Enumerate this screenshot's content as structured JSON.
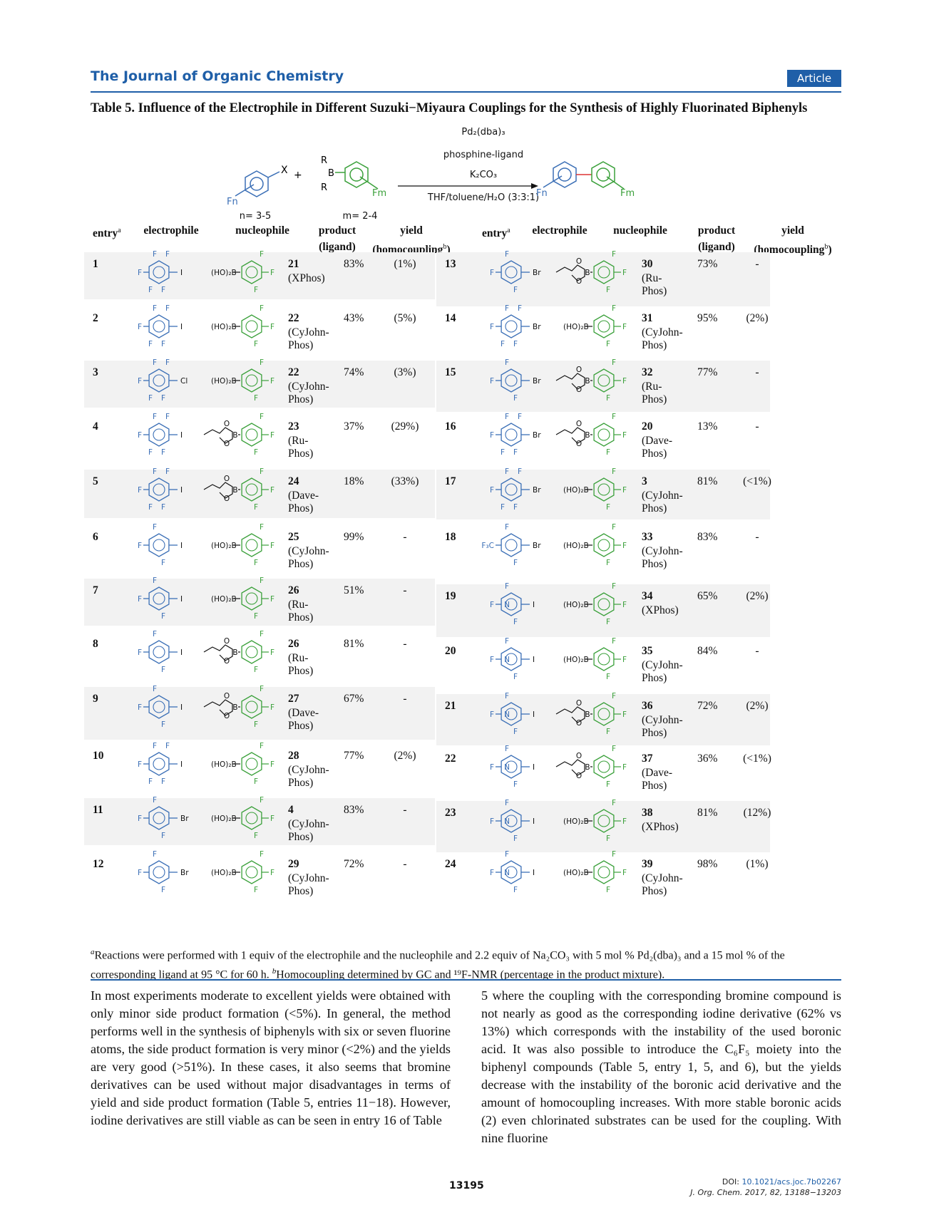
{
  "header": {
    "journal": "The Journal of Organic Chemistry",
    "badge": "Article"
  },
  "caption": "Table 5. Influence of the Electrophile in Different Suzuki−Miyaura Couplings for the Synthesis of Highly Fluorinated Biphenyls",
  "scheme": {
    "cond1": "Pd₂(dba)₃",
    "cond2": "phosphine-ligand",
    "cond3": "K₂CO₃",
    "cond4": "THF/toluene/H₂O (3:3:1)",
    "nlabel": "n= 3-5",
    "mlabel": "m= 2-4",
    "X": "X",
    "plus": "+",
    "B": "B",
    "R1": "R",
    "R2": "R",
    "Fn1": "Fn",
    "Fm1": "Fm",
    "Fn2": "Fn",
    "Fm2": "Fm"
  },
  "columns": {
    "entry": "entry",
    "entry_sup": "a",
    "electrophile": "electrophile",
    "nucleophile": "nucleophile",
    "product": "product",
    "ligand": "(ligand)",
    "yield": "yield",
    "homocoupling": "(homocoupling",
    "homo_sup": "b",
    "homo_close": ")"
  },
  "rows": [
    {
      "entry": "1",
      "e": "C6F5-I",
      "n": "boronic",
      "product": "21",
      "ligand": "(XPhos)",
      "yield": "83%",
      "homo": "(1%)"
    },
    {
      "entry": "2",
      "e": "C6F5-I",
      "n": "boronic",
      "product": "22",
      "ligand": "(CyJohn-\nPhos)",
      "yield": "43%",
      "homo": "(5%)"
    },
    {
      "entry": "3",
      "e": "C6F5-Cl",
      "n": "boronic",
      "product": "22",
      "ligand": "(CyJohn-\nPhos)",
      "yield": "74%",
      "homo": "(3%)"
    },
    {
      "entry": "4",
      "e": "C6F5-I",
      "n": "ester",
      "product": "23",
      "ligand": "(Ru-\nPhos)",
      "yield": "37%",
      "homo": "(29%)"
    },
    {
      "entry": "5",
      "e": "C6F5-I",
      "n": "ester",
      "product": "24",
      "ligand": "(Dave-\nPhos)",
      "yield": "18%",
      "homo": "(33%)"
    },
    {
      "entry": "6",
      "e": "ArF3-I",
      "n": "boronic",
      "product": "25",
      "ligand": "(CyJohn-\nPhos)",
      "yield": "99%",
      "homo": "-"
    },
    {
      "entry": "7",
      "e": "ArF3-I",
      "n": "boronic",
      "product": "26",
      "ligand": "(Ru-\nPhos)",
      "yield": "51%",
      "homo": "-"
    },
    {
      "entry": "8",
      "e": "ArF3-I",
      "n": "ester",
      "product": "26",
      "ligand": "(Ru-\nPhos)",
      "yield": "81%",
      "homo": "-"
    },
    {
      "entry": "9",
      "e": "ArF3-I",
      "n": "ester",
      "product": "27",
      "ligand": "(Dave-\nPhos)",
      "yield": "67%",
      "homo": "-"
    },
    {
      "entry": "10",
      "e": "ArF4-I",
      "n": "boronic",
      "product": "28",
      "ligand": "(CyJohn-\nPhos)",
      "yield": "77%",
      "homo": "(2%)"
    },
    {
      "entry": "11",
      "e": "ArF3-Br",
      "n": "boronic",
      "product": "4",
      "ligand": "(CyJohn-\nPhos)",
      "yield": "83%",
      "homo": "-"
    },
    {
      "entry": "12",
      "e": "ArF3-Br",
      "n": "boronic",
      "product": "29",
      "ligand": "(CyJohn-\nPhos)",
      "yield": "72%",
      "homo": "-"
    },
    {
      "entry": "13",
      "e": "ArF3-Br",
      "n": "ester",
      "product": "30",
      "ligand": "(Ru-\nPhos)",
      "yield": "73%",
      "homo": "-"
    },
    {
      "entry": "14",
      "e": "ArF4-Br",
      "n": "boronic",
      "product": "31",
      "ligand": "(CyJohn-\nPhos)",
      "yield": "95%",
      "homo": "(2%)"
    },
    {
      "entry": "15",
      "e": "ArF3-Br",
      "n": "ester",
      "product": "32",
      "ligand": "(Ru-\nPhos)",
      "yield": "77%",
      "homo": "-"
    },
    {
      "entry": "16",
      "e": "ArF4-Br",
      "n": "ester",
      "product": "20",
      "ligand": "(Dave-\nPhos)",
      "yield": "13%",
      "homo": "-"
    },
    {
      "entry": "17",
      "e": "ArF4-Br",
      "n": "boronic",
      "product": "3",
      "ligand": "(CyJohn-\nPhos)",
      "yield": "81%",
      "homo": "(<1%)"
    },
    {
      "entry": "18",
      "e": "CF3Ar-Br",
      "n": "boronic",
      "product": "33",
      "ligand": "(CyJohn-\nPhos)",
      "yield": "83%",
      "homo": "-"
    },
    {
      "entry": "19",
      "e": "Py-I",
      "n": "boronic",
      "product": "34",
      "ligand": "(XPhos)",
      "yield": "65%",
      "homo": "(2%)"
    },
    {
      "entry": "20",
      "e": "Py-I",
      "n": "boronic",
      "product": "35",
      "ligand": "(CyJohn-\nPhos)",
      "yield": "84%",
      "homo": "-"
    },
    {
      "entry": "21",
      "e": "Py-I",
      "n": "ester",
      "product": "36",
      "ligand": "(CyJohn-\nPhos)",
      "yield": "72%",
      "homo": "(2%)"
    },
    {
      "entry": "22",
      "e": "Py-I",
      "n": "ester",
      "product": "37",
      "ligand": "(Dave-\nPhos)",
      "yield": "36%",
      "homo": "(<1%)"
    },
    {
      "entry": "23",
      "e": "Py-I",
      "n": "boronic",
      "product": "38",
      "ligand": "(XPhos)",
      "yield": "81%",
      "homo": "(12%)"
    },
    {
      "entry": "24",
      "e": "Py-I",
      "n": "boronic",
      "product": "39",
      "ligand": "(CyJohn-\nPhos)",
      "yield": "98%",
      "homo": "(1%)"
    }
  ],
  "mol_labels": {
    "F": "F",
    "I": "I",
    "Br": "Br",
    "Cl": "Cl",
    "N": "N",
    "CF3": "F₃C",
    "boronic": "(HO)₂B",
    "O": "O",
    "B": "B"
  },
  "footnote": {
    "a_mark": "a",
    "a_text": "Reactions were performed with 1 equiv of the electrophile and the nucleophile and 2.2 equiv of Na₂CO₃ with 5 mol % Pd₂(dba)₃ and a 15 mol % of the corresponding ligand at 95 °C for 60 h.",
    "b_mark": "b",
    "b_text": "Homocoupling determined by GC and ¹⁹F-NMR (percentage in the product mixture)."
  },
  "body": {
    "left": "In most experiments moderate to excellent yields were obtained with only minor side product formation (<5%). In general, the method performs well in the synthesis of biphenyls with six or seven fluorine atoms, the side product formation is very minor (<2%) and the yields are very good (>51%). In these cases, it also seems that bromine derivatives can be used without major disadvantages in terms of yield and side product formation (Table 5, entries 11−18). However, iodine derivatives are still viable as can be seen in entry 16 of Table",
    "right": "5 where the coupling with the corresponding bromine compound is not nearly as good as the corresponding iodine derivative (62% vs 13%) which corresponds with the instability of the used boronic acid. It was also possible to introduce the C₆F₅ moiety into the biphenyl compounds (Table 5, entry 1, 5, and 6), but the yields decrease with the instability of the boronic acid derivative and the amount of homocoupling increases. With more stable boronic acids (2) even chlorinated substrates can be used for the coupling. With nine fluorine"
  },
  "page_number": "13195",
  "doi": {
    "label": "DOI: ",
    "link": "10.1021/acs.joc.7b02267",
    "cite": "J. Org. Chem. 2017, 82, 13188−13203"
  },
  "colors": {
    "accent": "#1f5fa8",
    "electrophile": "#3b6fb6",
    "nucleophile": "#3aa03a",
    "band": "#f2f2f2"
  }
}
